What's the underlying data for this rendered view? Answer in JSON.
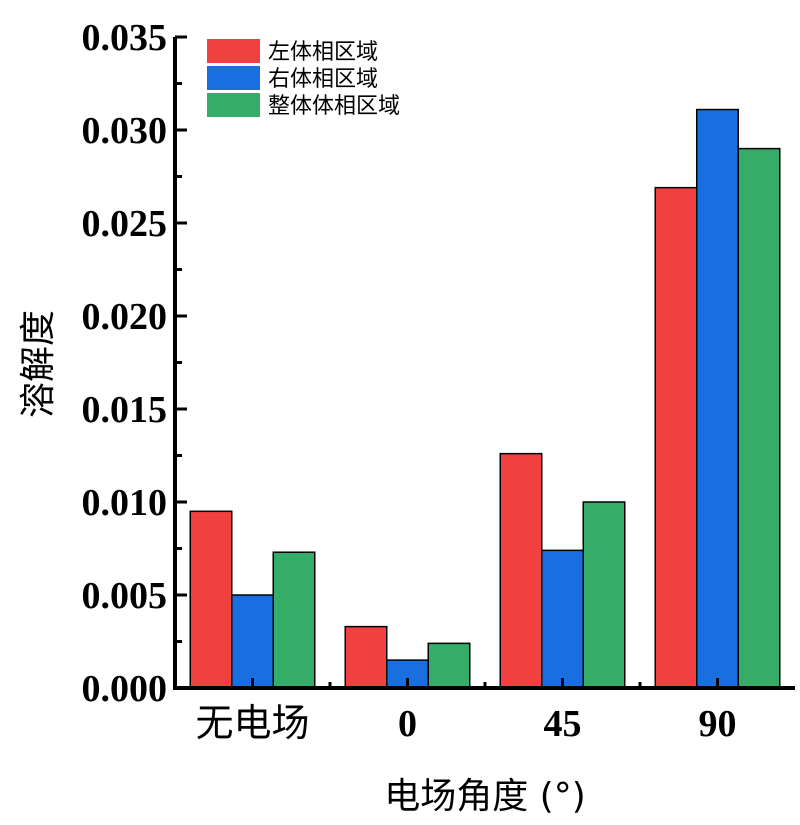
{
  "chart_data": {
    "type": "bar",
    "categories": [
      "无电场",
      "0",
      "45",
      "90"
    ],
    "series": [
      {
        "name": "左体相区域",
        "color": "#f04040",
        "values": [
          0.0095,
          0.0033,
          0.0126,
          0.0269
        ]
      },
      {
        "name": "右体相区域",
        "color": "#1a6fe0",
        "values": [
          0.005,
          0.0015,
          0.0074,
          0.0311
        ]
      },
      {
        "name": "整体体相区域",
        "color": "#35ad68",
        "values": [
          0.0073,
          0.0024,
          0.01,
          0.029
        ]
      }
    ],
    "xlabel": "电场角度 (°)",
    "ylabel": "溶解度",
    "ylim": [
      0,
      0.035
    ],
    "yticks": [
      "0.000",
      "0.005",
      "0.010",
      "0.015",
      "0.020",
      "0.025",
      "0.030",
      "0.035"
    ],
    "legend_position": "top-left",
    "grid": false
  }
}
